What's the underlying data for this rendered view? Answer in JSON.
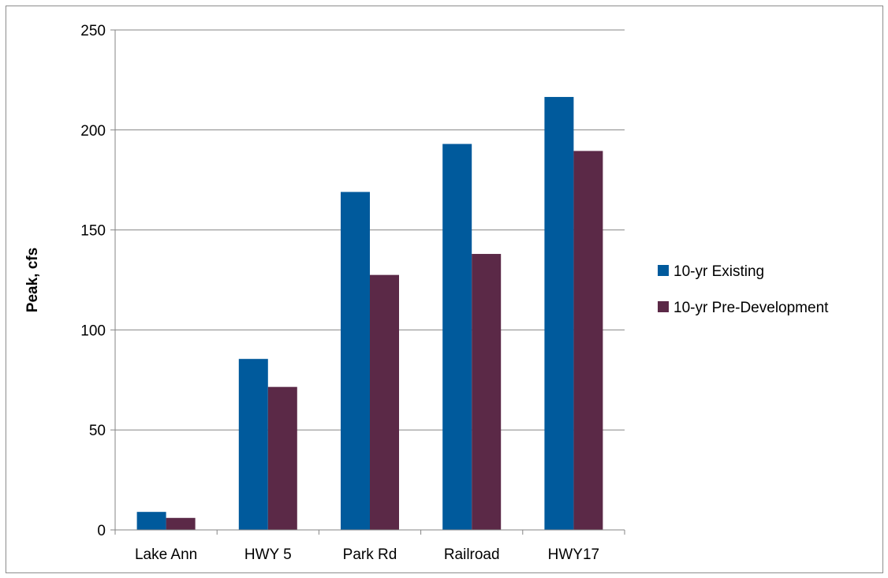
{
  "chart_data": {
    "type": "bar",
    "categories": [
      "Lake Ann",
      "HWY 5",
      "Park Rd",
      "Railroad",
      "HWY17"
    ],
    "series": [
      {
        "name": "10-yr Existing",
        "color": "#005a9c",
        "values": [
          9,
          85.5,
          169,
          193,
          216.5
        ]
      },
      {
        "name": "10-yr Pre-Development",
        "color": "#5b2947",
        "values": [
          6,
          71.5,
          127.5,
          138,
          189.5
        ]
      }
    ],
    "ylabel": "Peak, cfs",
    "xlabel": "",
    "ylim": [
      0,
      250
    ],
    "yticks": [
      0,
      50,
      100,
      150,
      200,
      250
    ],
    "grid": true,
    "legend_position": "right"
  }
}
